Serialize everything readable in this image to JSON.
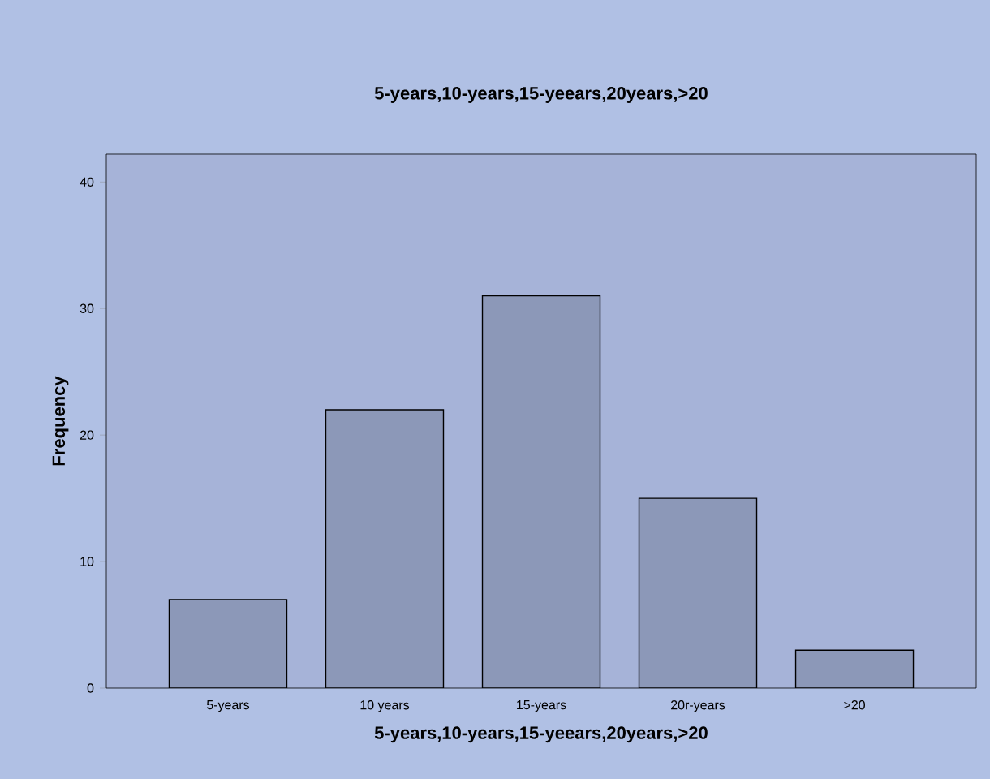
{
  "chart_data": {
    "type": "bar",
    "title": "5-years,10-years,15-yeears,20years,>20",
    "xlabel": "5-years,10-years,15-yeears,20years,>20",
    "ylabel": "Frequency",
    "categories": [
      "5-years",
      "10 years",
      "15-years",
      "20r-years",
      ">20"
    ],
    "values": [
      7,
      22,
      31,
      15,
      3
    ],
    "color": "#8c98b8",
    "ylim": [
      0,
      42.2
    ],
    "yticks": [
      0,
      10,
      20,
      30,
      40
    ],
    "grid": false
  }
}
